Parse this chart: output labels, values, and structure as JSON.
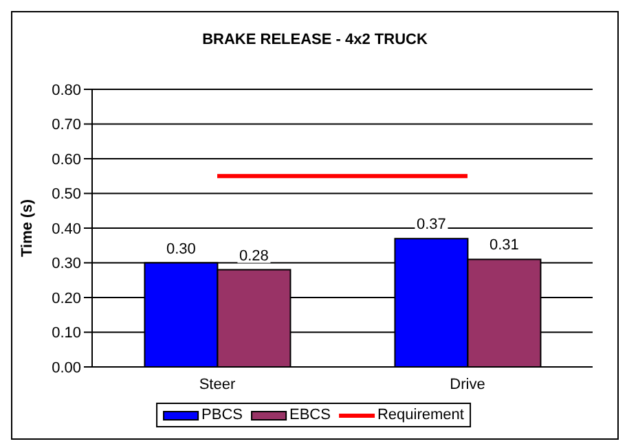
{
  "chart_data": {
    "type": "bar",
    "title": "BRAKE RELEASE - 4x2 TRUCK",
    "ylabel": "Time (s)",
    "categories": [
      "Steer",
      "Drive"
    ],
    "series": [
      {
        "name": "PBCS",
        "color": "#0000ff",
        "values": [
          0.3,
          0.37
        ],
        "value_labels": [
          "0.30",
          "0.37"
        ]
      },
      {
        "name": "EBCS",
        "color": "#993366",
        "values": [
          0.28,
          0.31
        ],
        "value_labels": [
          "0.28",
          "0.31"
        ]
      },
      {
        "name": "Requirement",
        "type": "line",
        "color": "#ff0000",
        "values": [
          0.55,
          0.55
        ]
      }
    ],
    "ylim": [
      0,
      0.8
    ],
    "yticks": [
      {
        "value": 0,
        "label": "0.00"
      },
      {
        "value": 0.1,
        "label": "0.10"
      },
      {
        "value": 0.2,
        "label": "0.20"
      },
      {
        "value": 0.3,
        "label": "0.30"
      },
      {
        "value": 0.4,
        "label": "0.40"
      },
      {
        "value": 0.5,
        "label": "0.50"
      },
      {
        "value": 0.6,
        "label": "0.60"
      },
      {
        "value": 0.7,
        "label": "0.70"
      },
      {
        "value": 0.8,
        "label": "0.80"
      }
    ],
    "grid": "y",
    "legend": "bottom"
  }
}
